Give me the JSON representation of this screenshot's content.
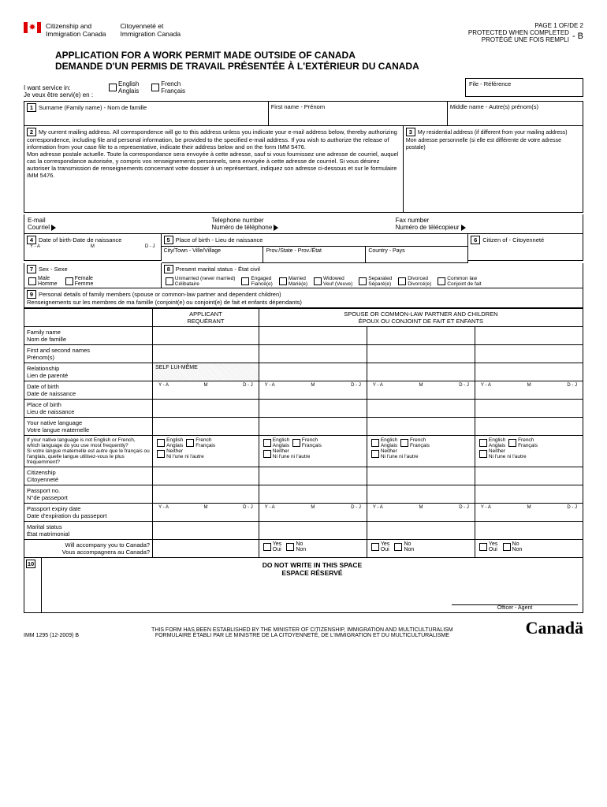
{
  "header": {
    "dept_en": "Citizenship and\nImmigration Canada",
    "dept_fr": "Citoyenneté et\nImmigration Canada",
    "page": "PAGE 1 OF/DE 2",
    "protected": "PROTECTED WHEN COMPLETED\nPROTÉGÉ UNE FOIS REMPLI",
    "code": "- B",
    "title_en": "APPLICATION FOR A WORK PERMIT MADE OUTSIDE OF CANADA",
    "title_fr": "DEMANDE D'UN PERMIS DE TRAVAIL PRÉSENTÉE À L'EXTÉRIEUR DU CANADA"
  },
  "service": {
    "label_en": "I want service in:",
    "label_fr": "Je veux être servi(e) en :",
    "english": "English\nAnglais",
    "french": "French\nFrançais",
    "file": "File - Référence"
  },
  "s1": {
    "surname": "Surname (Family name) - Nom de famille",
    "first": "First name - Prénom",
    "middle": "Middle name - Autre(s) prénom(s)"
  },
  "s2": {
    "text": "My current mailing address. All correspondence will go to this address unless you indicate your e-mail address below, thereby authorizing correspondence, including file and personal information, be provided to the specified e-mail address. If you wish to authorize the release of information from your case file to a representative, indicate their address below and on the form IMM 5476.\nMon adresse postale actuelle. Toute la correspondance sera envoyée à cette adresse, sauf si vous fournissez une adresse de courriel, auquel cas la correspondance autorisée, y compris vos renseignements personnels, sera envoyée à cette adresse de courriel. Si vous désirez autoriser la transmission de renseignements concernant votre dossier à un représentant, indiquez son adresse ci-dessous et sur le formulaire IMM 5476."
  },
  "s3": {
    "text": "My residential address (if different from your mailing address)\nMon adresse personnelle (si elle est différente de votre adresse postale)"
  },
  "contact": {
    "email": "E-mail\nCourriel",
    "phone": "Telephone number\nNuméro de téléphone",
    "fax": "Fax number\nNuméro de télécopieur"
  },
  "s4": {
    "label": "Date of birth-Date de naissance",
    "ya": "Y - A",
    "m": "M",
    "dj": "D - J"
  },
  "s5": {
    "label": "Place of birth - Lieu de naissance",
    "city": "City/Town - Ville/Village",
    "prov": "Prov./State - Prov./État",
    "country": "Country - Pays"
  },
  "s6": {
    "label": "Citizen of - Citoyenneté"
  },
  "s7": {
    "label": "Sex - Sexe",
    "male": "Male\nHomme",
    "female": "Female\nFemme"
  },
  "s8": {
    "label": "Present marital status - État civil",
    "opts": [
      "Unmarried (never married)\nCélibataire",
      "Engaged\nFiancé(e)",
      "Married\nMarié(e)",
      "Widowed\nVeuf (Veuve)",
      "Separated\nSéparé(e)",
      "Divorced\nDivorcé(e)",
      "Common law\nConjoint de fait"
    ]
  },
  "s9": {
    "label": "Personal details of family members (spouse or common-law partner and dependent children)\nRenseignements sur les membres de ma famille (conjoint(e) ou conjoint(e) de fait et enfants dépendants)",
    "applicant": "APPLICANT\nREQUÉRANT",
    "spouse": "SPOUSE OR COMMON-LAW PARTNER AND CHILDREN\nÉPOUX OU CONJOINT DE FAIT ET ENFANTS",
    "rows": {
      "family_name": "Family name\nNom de famille",
      "first_names": "First and second names\nPrénom(s)",
      "relationship": "Relationship\nLien de parenté",
      "self": "SELF\nLUI-MÊME",
      "dob": "Date of birth\nDate de naissance",
      "pob": "Place of birth\nLieu de naissance",
      "native_lang": "Your native language\nVotre langue maternelle",
      "lang_q": "If your native language is not English or French, which language do you use most frequently?\nSi votre langue maternelle est autre que le français ou l'anglais, quelle langue utilisez-vous le plus fréquemment?",
      "english": "English\nAnglais",
      "french": "French\nFrançais",
      "neither": "Neither\nNi l'une ni l'autre",
      "citizenship": "Citizenship\nCitoyenneté",
      "passport": "Passport no.\nN°de passeport",
      "passport_exp": "Passport expiry date\nDate d'expiration du passeport",
      "marital": "Marital status\nÉtat matrimonial",
      "accompany": "Will accompany you to Canada?\nVous accompagnera au Canada?",
      "yes": "Yes\nOui",
      "no": "No\nNon"
    }
  },
  "s10": {
    "label": "DO NOT WRITE IN THIS SPACE\nESPACE RÉSERVÉ",
    "officer": "Officer - Agent"
  },
  "footer": {
    "form": "IMM 1295 (12-2009) B",
    "est": "THIS FORM HAS BEEN ESTABLISHED BY THE MINISTER OF CITIZENSHIP, IMMIGRATION AND MULTICULTURALISM\nFORMULAIRE ÉTABLI PAR LE MINISTRE DE LA CITOYENNETÉ, DE L'IMMIGRATION ET DU MULTICULTURALISME",
    "wordmark": "Canadä"
  }
}
